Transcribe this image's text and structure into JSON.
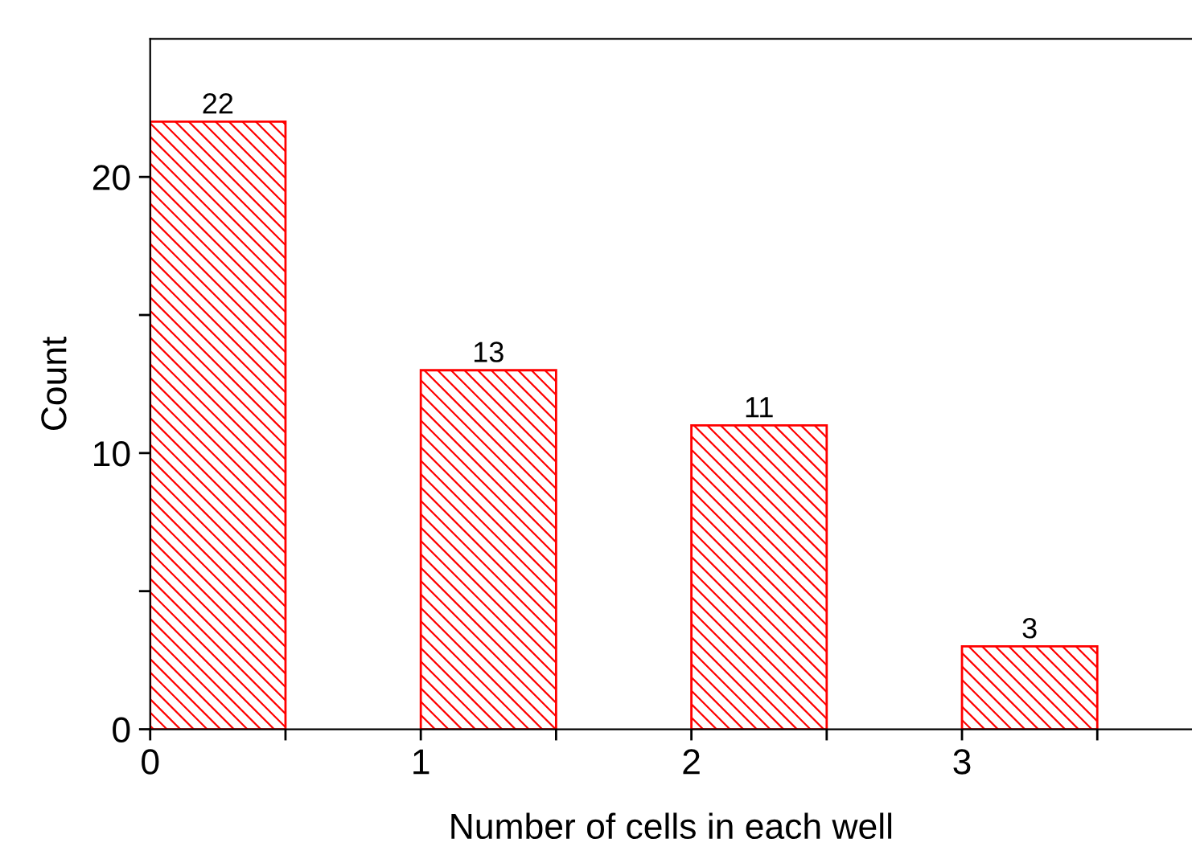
{
  "chart_data": {
    "type": "bar",
    "xlabel": "Number of cells in each well",
    "ylabel": "Count",
    "x": [
      0.25,
      1.25,
      2.25,
      3.25
    ],
    "values": [
      22,
      13,
      11,
      3
    ],
    "color": "#ff0000",
    "data_labels": true,
    "xlim": [
      0,
      3.85
    ],
    "ylim": [
      0,
      25
    ],
    "xticks": [
      0,
      {
        "value": 0.5,
        "label": null
      },
      1,
      {
        "value": 1.5,
        "label": null
      },
      2,
      {
        "value": 2.5,
        "label": null
      },
      3,
      {
        "value": 3.5,
        "label": null
      }
    ],
    "yticks": [
      0,
      {
        "value": 5,
        "label": null
      },
      10,
      {
        "value": 15,
        "label": null
      },
      20
    ],
    "grid": false,
    "legend": false
  }
}
